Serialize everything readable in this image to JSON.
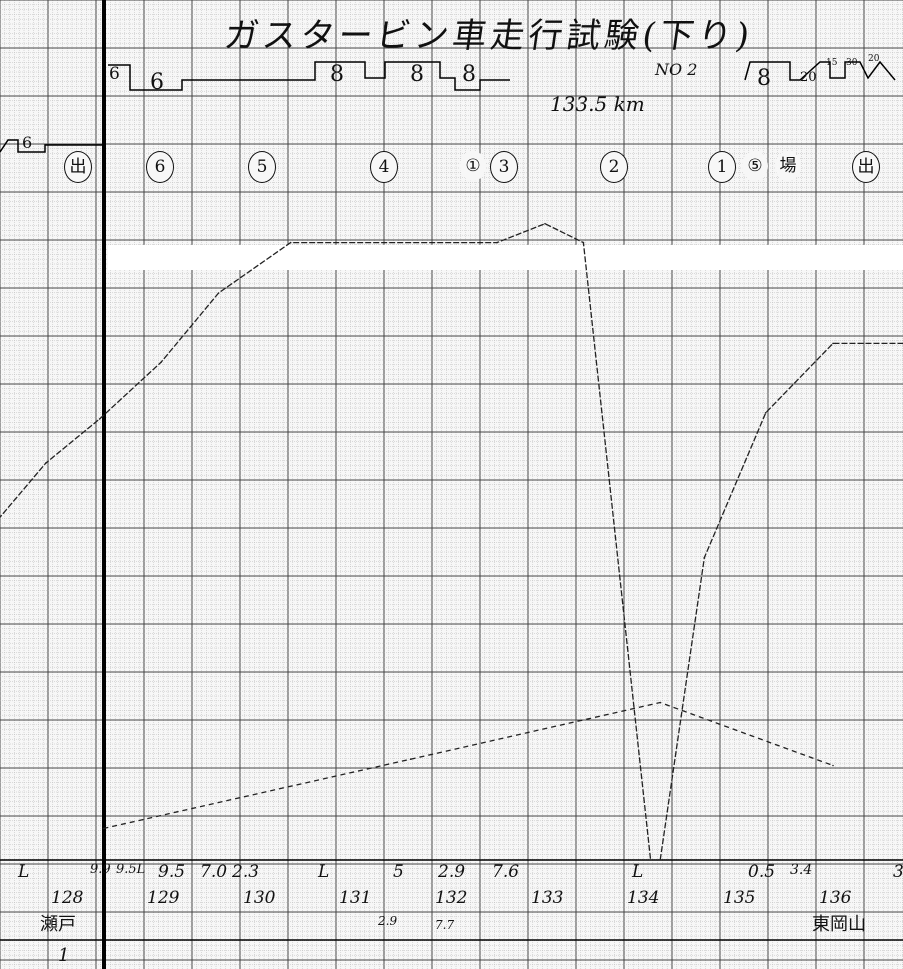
{
  "title": "ガスタービン車走行試験(下り)",
  "sheet_no": "NO 2",
  "distance_note": "133.5 km",
  "speed_limits": [
    "6",
    "6",
    "8",
    "8",
    "8",
    "8",
    "20",
    "15",
    "30",
    "20"
  ],
  "left_limit": "6",
  "markers": [
    "出",
    "6",
    "5",
    "4",
    "①",
    "3",
    "2",
    "1",
    "⑤",
    "場",
    "出"
  ],
  "grades": [
    "L",
    "9.9",
    "9.5L",
    "9.5",
    "7.0",
    "2.3",
    "L",
    "5",
    "2.9",
    "7.6",
    "L",
    "0.5",
    "3.4",
    "3"
  ],
  "stations": {
    "start": "瀬戸",
    "end": "東岡山"
  },
  "extra_labels": {
    "g1": "2.9",
    "g2": "7.7",
    "page": "1"
  },
  "chart_data": {
    "type": "line",
    "title": "ガスタービン車走行試験(下り)",
    "xlabel": "",
    "ylabel": "",
    "x_ticks": [
      128,
      129,
      130,
      131,
      132,
      133,
      134,
      135,
      136
    ],
    "xlim": [
      127.3,
      137.7
    ],
    "ylim": [
      0,
      100
    ],
    "grid": true,
    "series": [
      {
        "values": [
          [
            127.3,
            54
          ],
          [
            127.8,
            63
          ],
          [
            128.36,
            70
          ],
          [
            129.0,
            79
          ],
          [
            129.6,
            90
          ],
          [
            130.35,
            98
          ],
          [
            132.5,
            98
          ],
          [
            133.0,
            101
          ],
          [
            133.4,
            98
          ],
          [
            134.1,
            0
          ]
        ]
      },
      {
        "values": [
          [
            134.2,
            0
          ],
          [
            134.66,
            48
          ],
          [
            135.3,
            71
          ],
          [
            136.0,
            82
          ],
          [
            137.7,
            82
          ]
        ]
      },
      {
        "values": [
          [
            128.4,
            5
          ],
          [
            131.6,
            16
          ],
          [
            134.2,
            25
          ],
          [
            136.0,
            15
          ]
        ]
      }
    ]
  }
}
